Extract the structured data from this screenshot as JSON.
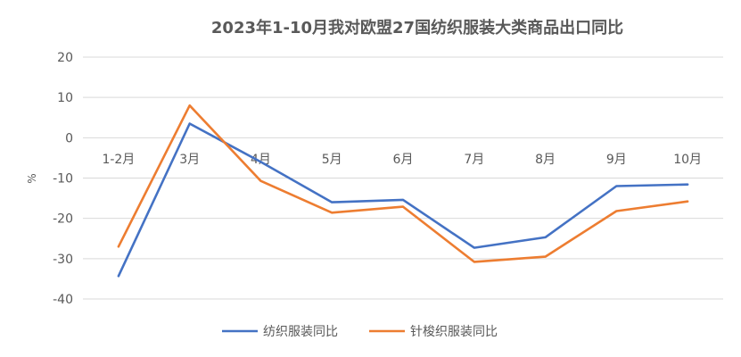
{
  "chart_data": {
    "type": "line",
    "title": "2023年1-10月我对欧盟27国纺织服装大类商品出口同比",
    "xlabel": "",
    "ylabel": "%",
    "categories": [
      "1-2月",
      "3月",
      "4月",
      "5月",
      "6月",
      "7月",
      "8月",
      "9月",
      "10月"
    ],
    "ylim": [
      -40,
      20
    ],
    "yticks": [
      20,
      10,
      0,
      -10,
      -20,
      -30,
      -40
    ],
    "grid": true,
    "legend": "bottom",
    "series": [
      {
        "name": "纺织服装同比",
        "color": "#4472C4",
        "values": [
          -34.3,
          3.5,
          -6.0,
          -16.0,
          -15.4,
          -27.3,
          -24.7,
          -12.0,
          -11.6
        ]
      },
      {
        "name": "针梭织服装同比",
        "color": "#ED7D31",
        "values": [
          -27.0,
          8.0,
          -10.7,
          -18.6,
          -17.1,
          -30.8,
          -29.5,
          -18.2,
          -15.8
        ]
      }
    ]
  }
}
